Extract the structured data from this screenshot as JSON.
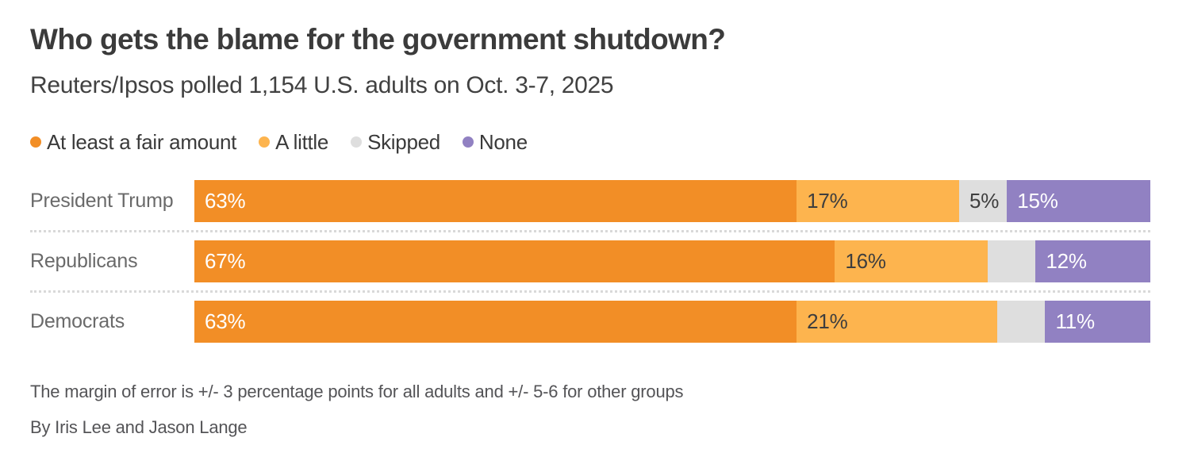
{
  "header": {
    "title": "Who gets the blame for the government shutdown?",
    "subtitle": "Reuters/Ipsos polled 1,154 U.S. adults on Oct. 3-7, 2025"
  },
  "legend": [
    {
      "label": "At least a fair amount",
      "color": "#F28E26"
    },
    {
      "label": "A little",
      "color": "#FDB44E"
    },
    {
      "label": "Skipped",
      "color": "#DEDEDE"
    },
    {
      "label": "None",
      "color": "#9181C2"
    }
  ],
  "chart_data": {
    "type": "bar",
    "orientation": "horizontal",
    "stacked": true,
    "title": "Who gets the blame for the government shutdown?",
    "categories": [
      "President Trump",
      "Republicans",
      "Democrats"
    ],
    "series": [
      {
        "name": "At least a fair amount",
        "color": "#F28E26",
        "label_color": "#FFFFFF",
        "values": [
          63,
          67,
          63
        ]
      },
      {
        "name": "A little",
        "color": "#FDB44E",
        "label_color": "#3E3E3E",
        "values": [
          17,
          16,
          21
        ]
      },
      {
        "name": "Skipped",
        "color": "#DEDEDE",
        "label_color": "#3E3E3E",
        "values": [
          5,
          5,
          5
        ]
      },
      {
        "name": "None",
        "color": "#9181C2",
        "label_color": "#FFFFFF",
        "values": [
          15,
          12,
          11
        ]
      }
    ],
    "segment_labels": [
      [
        "63%",
        "17%",
        "5%",
        "15%"
      ],
      [
        "67%",
        "16%",
        "",
        "12%"
      ],
      [
        "63%",
        "21%",
        "",
        "11%"
      ]
    ],
    "xlim": [
      0,
      100
    ],
    "legend_position": "top",
    "grid": false
  },
  "footer": {
    "note": "The margin of error is +/- 3 percentage points for all adults and +/- 5-6 for other groups",
    "byline": "By Iris Lee and Jason Lange"
  }
}
